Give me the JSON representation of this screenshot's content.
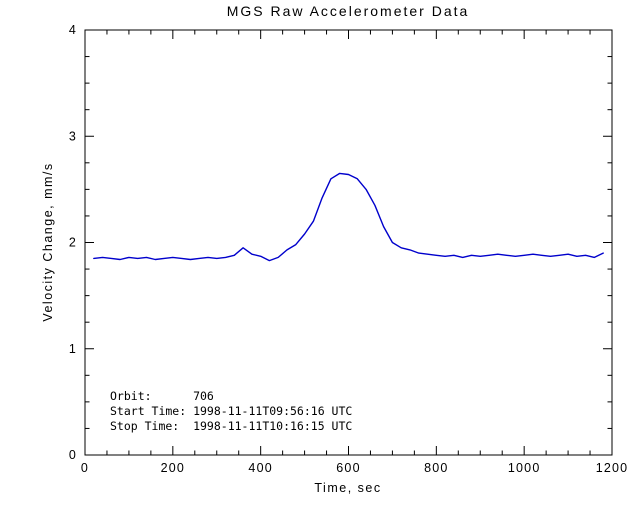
{
  "chart_data": {
    "type": "line",
    "title": "MGS Raw Accelerometer Data",
    "xlabel": "Time, sec",
    "ylabel": "Velocity Change, mm/s",
    "xlim": [
      0,
      1200
    ],
    "ylim": [
      0,
      4
    ],
    "x_ticks": [
      0,
      200,
      400,
      600,
      800,
      1000,
      1200
    ],
    "x_minor_step": 50,
    "y_ticks": [
      0,
      1,
      2,
      3,
      4
    ],
    "y_minor_step": 0.25,
    "grid": false,
    "legend": "none",
    "line_color": "#0000cc",
    "axis_color": "#000000",
    "background": "#ffffff",
    "series": [
      {
        "name": "velocity-change",
        "x": [
          20,
          40,
          60,
          80,
          100,
          120,
          140,
          160,
          180,
          200,
          220,
          240,
          260,
          280,
          300,
          320,
          340,
          360,
          380,
          400,
          420,
          440,
          460,
          480,
          500,
          520,
          540,
          560,
          580,
          600,
          620,
          640,
          660,
          680,
          700,
          720,
          740,
          760,
          780,
          800,
          820,
          840,
          860,
          880,
          900,
          920,
          940,
          960,
          980,
          1000,
          1020,
          1040,
          1060,
          1080,
          1100,
          1120,
          1140,
          1160,
          1180
        ],
        "y": [
          1.85,
          1.86,
          1.85,
          1.84,
          1.86,
          1.85,
          1.86,
          1.84,
          1.85,
          1.86,
          1.85,
          1.84,
          1.85,
          1.86,
          1.85,
          1.86,
          1.88,
          1.95,
          1.89,
          1.87,
          1.83,
          1.86,
          1.93,
          1.98,
          2.08,
          2.2,
          2.42,
          2.6,
          2.65,
          2.64,
          2.6,
          2.5,
          2.35,
          2.15,
          2.0,
          1.95,
          1.93,
          1.9,
          1.89,
          1.88,
          1.87,
          1.88,
          1.86,
          1.88,
          1.87,
          1.88,
          1.89,
          1.88,
          1.87,
          1.88,
          1.89,
          1.88,
          1.87,
          1.88,
          1.89,
          1.87,
          1.88,
          1.86,
          1.9
        ]
      }
    ],
    "annotations": {
      "orbit_label": "Orbit:      706",
      "start_time": "Start Time: 1998-11-11T09:56:16 UTC",
      "stop_time": "Stop Time:  1998-11-11T10:16:15 UTC"
    }
  }
}
